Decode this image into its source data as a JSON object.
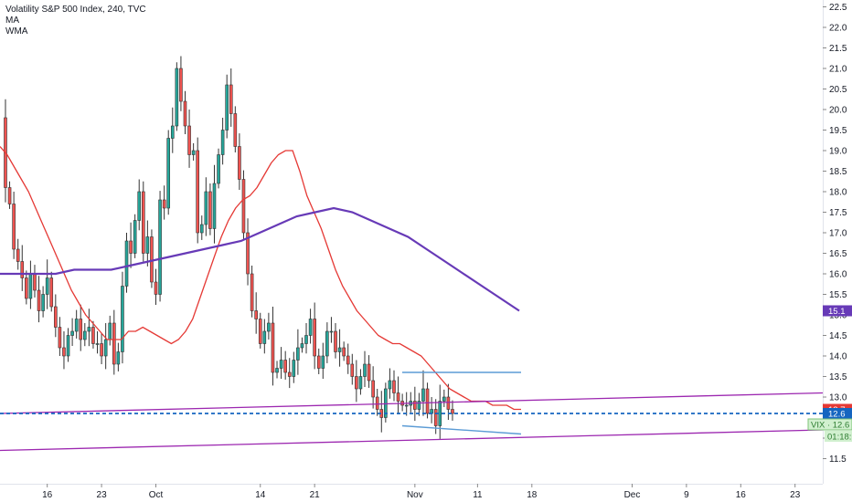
{
  "legend": {
    "title": "Volatility S&P 500 Index, 240, TVC",
    "indicator_1": "MA",
    "indicator_2": "WMA"
  },
  "colors": {
    "up_candle": "#26a69a",
    "down_candle": "#ef5350",
    "candle_outline": "#333333",
    "ma_line": "#e53935",
    "wma_line": "#673ab7",
    "channel_line": "#9c27b0",
    "horizontal_line": "#1565c0",
    "range_line": "#5b9bd5",
    "axis_text": "#131722",
    "grid": "#f3f3f3"
  },
  "price_badges": {
    "ma_value": "12.7",
    "close_value": "12.6",
    "wma_value": "15.1",
    "symbol_label": "VIX",
    "symbol_value": "12.6",
    "countdown": "01:18:"
  },
  "chart_data": {
    "type": "candlestick",
    "title": "Volatility S&P 500 Index, 240, TVC",
    "ylim": [
      11.0,
      22.6
    ],
    "y_ticks": [
      "11.5",
      "12.0",
      "12.5",
      "13.0",
      "13.5",
      "14.0",
      "14.5",
      "15.0",
      "15.5",
      "16.0",
      "16.5",
      "17.0",
      "17.5",
      "18.0",
      "18.5",
      "19.0",
      "19.5",
      "20.0",
      "20.5",
      "21.0",
      "21.5",
      "22.0",
      "22.5"
    ],
    "x_ticks": [
      "16",
      "23",
      "Oct",
      "14",
      "21",
      "Nov",
      "11",
      "18",
      "Dec",
      "9",
      "16",
      "23"
    ],
    "x_tick_index": [
      24,
      37,
      50,
      75,
      88,
      112,
      127,
      140,
      164,
      177,
      190,
      203
    ],
    "bars_per_day": 2.5,
    "series": [
      {
        "name": "VIX 240",
        "type": "candle",
        "close": [
          20.4,
          19.8,
          18.1,
          17.7,
          16.6,
          16.3,
          15.9,
          15.4,
          16.0,
          15.6,
          15.1,
          15.5,
          15.9,
          15.2,
          14.7,
          14.2,
          14.0,
          14.5,
          14.6,
          14.9,
          14.4,
          14.6,
          14.7,
          14.3,
          14.3,
          14.0,
          14.4,
          14.8,
          13.8,
          14.1,
          15.7,
          16.8,
          16.5,
          17.3,
          18.0,
          16.5,
          16.9,
          15.8,
          15.5,
          17.8,
          17.6,
          19.3,
          19.6,
          21.0,
          20.2,
          19.6,
          18.9,
          19.0,
          17.0,
          17.2,
          18.0,
          17.1,
          18.2,
          18.9,
          19.5,
          20.6,
          19.9,
          19.1,
          18.3,
          17.0,
          16.0,
          15.1,
          14.9,
          14.3,
          14.6,
          14.8,
          13.6,
          13.7,
          13.9,
          13.6,
          13.5,
          13.9,
          14.2,
          14.3,
          14.5,
          14.9,
          14.0,
          13.7,
          14.0,
          14.6,
          14.6,
          14.1,
          14.2,
          14.0,
          13.8,
          13.5,
          13.2,
          13.5,
          13.8,
          13.4,
          13.0,
          12.7,
          12.5,
          13.2,
          13.4,
          13.1,
          12.9,
          12.8,
          12.8,
          12.9,
          12.7,
          12.9,
          13.2,
          12.6,
          12.7,
          12.3,
          12.9,
          13.0,
          12.7,
          12.6
        ]
      },
      {
        "name": "MA",
        "type": "line",
        "values": [
          19.1,
          18.9,
          18.6,
          18.3,
          18.0,
          17.6,
          17.2,
          16.8,
          16.4,
          16.0,
          15.6,
          15.3,
          15.0,
          14.8,
          14.6,
          14.4,
          14.4,
          14.4,
          14.6,
          14.6,
          14.7,
          14.6,
          14.5,
          14.4,
          14.3,
          14.4,
          14.6,
          14.9,
          15.4,
          15.9,
          16.4,
          16.9,
          17.3,
          17.6,
          17.8,
          17.9,
          18.1,
          18.4,
          18.7,
          18.9,
          19.0,
          19.0,
          18.5,
          17.9,
          17.5,
          17.1,
          16.6,
          16.1,
          15.7,
          15.4,
          15.1,
          14.9,
          14.7,
          14.5,
          14.4,
          14.3,
          14.3,
          14.2,
          14.1,
          14.0,
          13.8,
          13.6,
          13.4,
          13.2,
          13.1,
          13.0,
          12.9,
          12.9,
          12.9,
          12.8,
          12.8,
          12.8,
          12.7,
          12.7
        ]
      },
      {
        "name": "WMA",
        "type": "line",
        "values": [
          16.0,
          16.0,
          16.0,
          16.0,
          16.1,
          16.1,
          16.1,
          16.2,
          16.3,
          16.4,
          16.5,
          16.6,
          16.7,
          16.8,
          17.0,
          17.2,
          17.4,
          17.5,
          17.6,
          17.5,
          17.3,
          17.1,
          16.9,
          16.6,
          16.3,
          16.0,
          15.7,
          15.4,
          15.1
        ]
      },
      {
        "name": "Channel upper",
        "type": "line",
        "values": [
          12.6,
          13.1
        ]
      },
      {
        "name": "Channel lower",
        "type": "line",
        "values": [
          11.7,
          12.2
        ]
      },
      {
        "name": "Close level",
        "type": "hline",
        "values": [
          12.6
        ]
      },
      {
        "name": "Range top",
        "type": "hline",
        "values": [
          13.6
        ]
      },
      {
        "name": "Range bottom",
        "type": "line",
        "values": [
          12.3,
          12.1
        ]
      }
    ],
    "grid": true,
    "legend_position": "top-left"
  }
}
